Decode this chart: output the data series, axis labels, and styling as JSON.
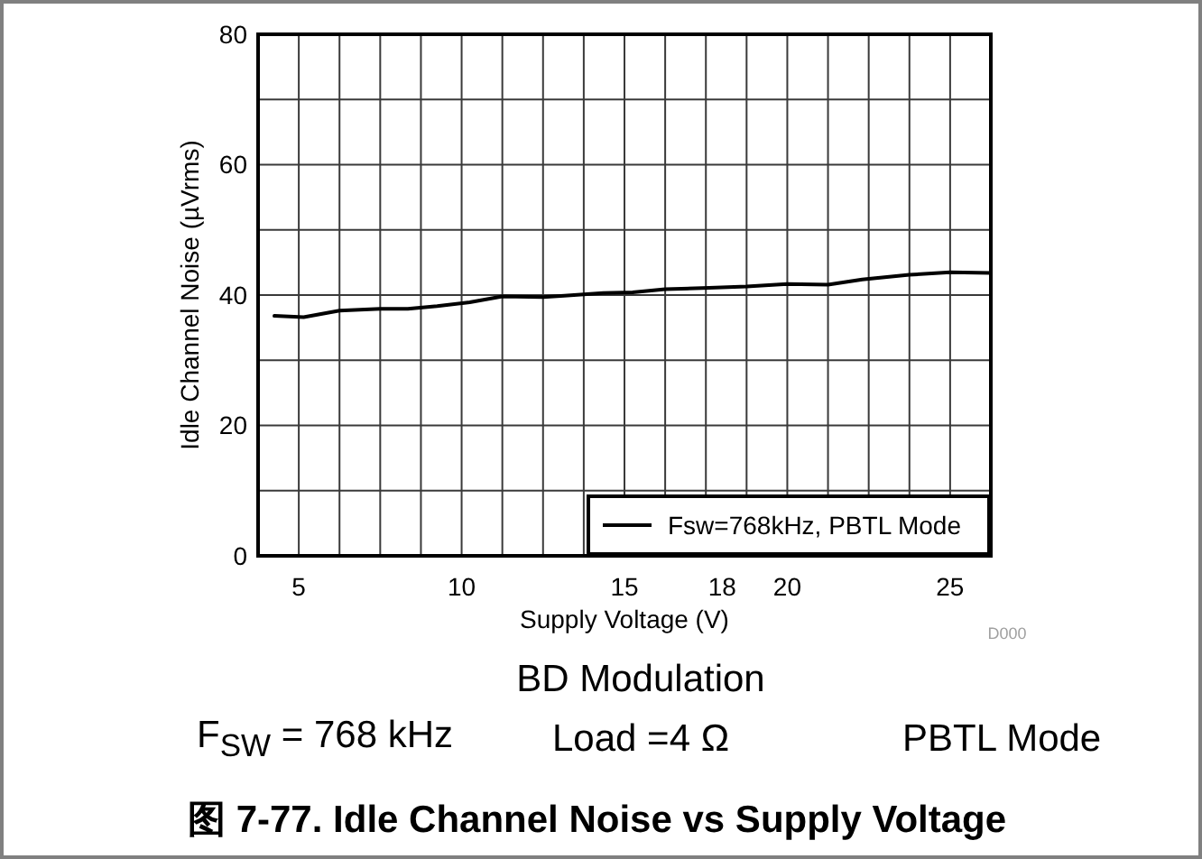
{
  "chart_data": {
    "type": "line",
    "title": "图 7-77. Idle Channel Noise vs Supply Voltage",
    "subtitle": "BD Modulation",
    "xlabel": "Supply Voltage (V)",
    "ylabel": "Idle Channel Noise (µVrms)",
    "annotations": [
      "D000",
      "F$_{SW}$ = 768 kHz",
      "Load =4 Ω",
      "PBTL Mode"
    ],
    "x": [
      4.25,
      5.15,
      6.25,
      7.5,
      8.35,
      9.25,
      10.25,
      11.25,
      12.5,
      13.15,
      13.75,
      14.35,
      15.25,
      16.25,
      17.6,
      18.75,
      20.0,
      21.25,
      22.3,
      23.75,
      25.0,
      26.25
    ],
    "series": [
      {
        "name": "Fsw=768kHz, PBTL Mode",
        "color": "#000000",
        "values": [
          36.8,
          36.6,
          37.6,
          37.9,
          37.9,
          38.3,
          38.9,
          39.8,
          39.7,
          39.9,
          40.1,
          40.3,
          40.4,
          40.9,
          41.1,
          41.3,
          41.7,
          41.6,
          42.4,
          43.1,
          43.5,
          43.4
        ]
      }
    ],
    "xlim": [
      3.75,
      26.25
    ],
    "xticks": [
      5,
      {
        "value": 6.25,
        "label": null
      },
      {
        "value": 7.5,
        "label": null
      },
      {
        "value": 8.75,
        "label": null
      },
      10,
      {
        "value": 11.25,
        "label": null
      },
      {
        "value": 12.5,
        "label": null
      },
      {
        "value": 13.75,
        "label": null
      },
      15,
      {
        "value": 16.25,
        "label": null
      },
      {
        "value": 17.5,
        "label": null
      },
      18,
      {
        "value": 18.75,
        "label": null
      },
      20,
      {
        "value": 21.25,
        "label": null
      },
      {
        "value": 22.5,
        "label": null
      },
      {
        "value": 23.75,
        "label": null
      },
      25
    ],
    "ylim": [
      0,
      80
    ],
    "yticks": [
      0,
      {
        "value": 10,
        "label": null
      },
      20,
      {
        "value": 30,
        "label": null
      },
      40,
      {
        "value": 50,
        "label": null
      },
      60,
      {
        "value": 70,
        "label": null
      },
      80
    ],
    "grid": true,
    "legend": "bottom right"
  }
}
